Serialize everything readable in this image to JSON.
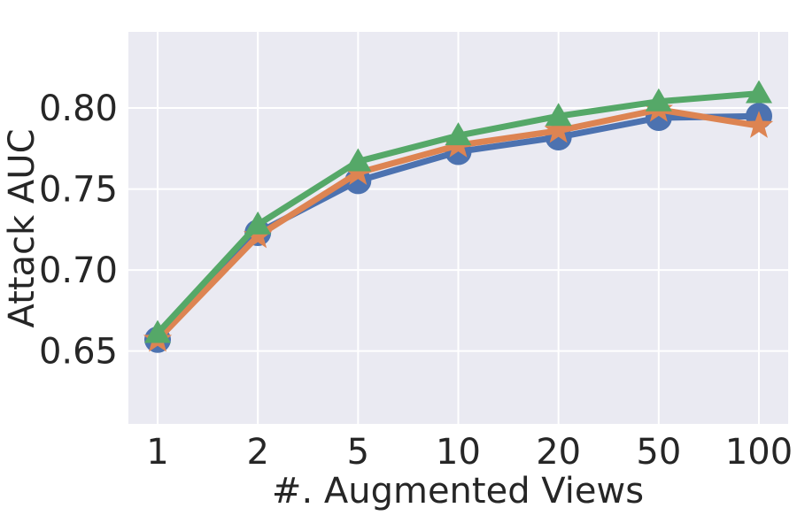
{
  "chart_data": {
    "type": "line",
    "title": "",
    "xlabel": "#. Augmented Views",
    "ylabel": "Attack AUC",
    "categories": [
      "1",
      "2",
      "5",
      "10",
      "20",
      "50",
      "100"
    ],
    "ylim": [
      0.605,
      0.847
    ],
    "yticks": [
      "0.65",
      "0.70",
      "0.75",
      "0.80"
    ],
    "grid": true,
    "background": "#eaeaf2",
    "series": [
      {
        "color": "#4c72b0",
        "marker": "circle",
        "values": [
          0.657,
          0.723,
          0.755,
          0.773,
          0.782,
          0.794,
          0.795
        ]
      },
      {
        "color": "#dd8452",
        "marker": "star",
        "values": [
          0.657,
          0.721,
          0.76,
          0.777,
          0.786,
          0.799,
          0.789
        ]
      },
      {
        "color": "#55a868",
        "marker": "triangle",
        "values": [
          0.661,
          0.728,
          0.767,
          0.783,
          0.795,
          0.804,
          0.809
        ]
      }
    ]
  }
}
